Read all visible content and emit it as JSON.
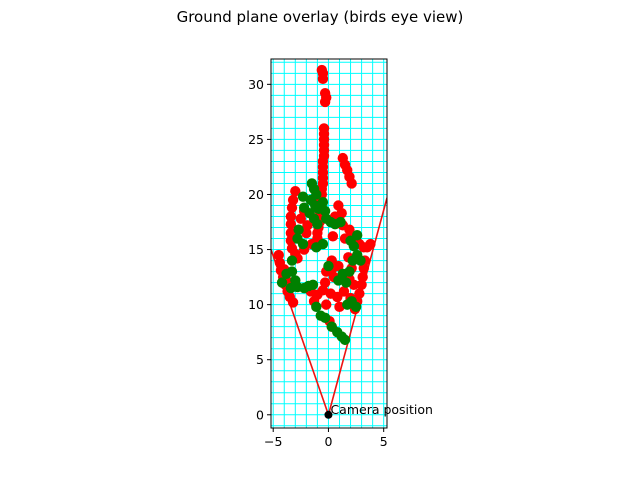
{
  "chart_data": {
    "type": "scatter",
    "title": "Ground plane overlay (birds eye view)",
    "xlabel": "",
    "ylabel": "",
    "xlim": [
      -5.2,
      5.3
    ],
    "ylim": [
      -1.2,
      32.3
    ],
    "x_ticks": [
      -5,
      0,
      5
    ],
    "y_ticks": [
      0,
      5,
      10,
      15,
      20,
      25,
      30
    ],
    "x_tick_labels": [
      "−5",
      "0",
      "5"
    ],
    "y_tick_labels": [
      "0",
      "5",
      "10",
      "15",
      "20",
      "25",
      "30"
    ],
    "grid": {
      "on": true,
      "color": "#00ffff",
      "spacing": 1
    },
    "camera": {
      "x": 0,
      "y": 0,
      "label": "Camera position"
    },
    "fov_lines": [
      {
        "color": "#ee1111",
        "points": [
          [
            0,
            0
          ],
          [
            -5.2,
            15.0
          ]
        ]
      },
      {
        "color": "#ee1111",
        "points": [
          [
            0,
            0
          ],
          [
            5.3,
            19.7
          ]
        ]
      }
    ],
    "series": [
      {
        "color": "#ff0000",
        "points": [
          [
            -0.6,
            31.3
          ],
          [
            -0.5,
            31.0
          ],
          [
            -0.5,
            30.5
          ],
          [
            -0.3,
            29.2
          ],
          [
            -0.2,
            28.8
          ],
          [
            -0.3,
            28.4
          ],
          [
            -0.4,
            26.0
          ],
          [
            -0.4,
            25.5
          ],
          [
            -0.4,
            25.0
          ],
          [
            -0.4,
            24.5
          ],
          [
            -0.4,
            24.0
          ],
          [
            -0.4,
            23.5
          ],
          [
            -0.5,
            23.0
          ],
          [
            -0.5,
            22.5
          ],
          [
            -0.5,
            22.0
          ],
          [
            -0.5,
            21.5
          ],
          [
            -0.5,
            21.0
          ],
          [
            -0.6,
            20.5
          ],
          [
            -0.6,
            20.0
          ],
          [
            -0.7,
            19.5
          ],
          [
            -0.7,
            19.0
          ],
          [
            -0.8,
            18.5
          ],
          [
            -0.8,
            18.0
          ],
          [
            -0.8,
            17.5
          ],
          [
            -0.9,
            17.0
          ],
          [
            -1.0,
            16.5
          ],
          [
            -1.0,
            16.0
          ],
          [
            -1.1,
            15.5
          ],
          [
            1.3,
            23.3
          ],
          [
            1.5,
            22.7
          ],
          [
            1.7,
            22.2
          ],
          [
            1.9,
            21.6
          ],
          [
            2.1,
            21.0
          ],
          [
            1.9,
            16.8
          ],
          [
            2.2,
            16.2
          ],
          [
            2.5,
            15.8
          ],
          [
            2.8,
            15.5
          ],
          [
            3.2,
            15.2
          ],
          [
            3.5,
            15.2
          ],
          [
            3.8,
            15.5
          ],
          [
            3.3,
            14.0
          ],
          [
            3.2,
            13.3
          ],
          [
            3.1,
            12.5
          ],
          [
            3.0,
            11.8
          ],
          [
            2.8,
            11.0
          ],
          [
            2.6,
            10.3
          ],
          [
            2.4,
            9.6
          ],
          [
            -3.0,
            20.3
          ],
          [
            -3.2,
            19.5
          ],
          [
            -3.3,
            18.8
          ],
          [
            -3.4,
            18.0
          ],
          [
            -3.4,
            17.3
          ],
          [
            -3.4,
            16.5
          ],
          [
            -3.4,
            15.8
          ],
          [
            -3.3,
            15.1
          ],
          [
            -3.0,
            14.6
          ],
          [
            -2.8,
            14.2
          ],
          [
            -2.2,
            15.0
          ],
          [
            -1.5,
            15.5
          ],
          [
            -1.9,
            17.2
          ],
          [
            -2.2,
            18.5
          ],
          [
            -2.5,
            17.8
          ],
          [
            -2.0,
            16.5
          ],
          [
            -4.5,
            14.5
          ],
          [
            -4.4,
            13.8
          ],
          [
            -4.3,
            13.1
          ],
          [
            -4.1,
            12.5
          ],
          [
            -3.9,
            11.8
          ],
          [
            -3.7,
            11.2
          ],
          [
            -3.5,
            10.7
          ],
          [
            -3.2,
            10.2
          ],
          [
            -4.0,
            13.2
          ],
          [
            -3.8,
            12.2
          ],
          [
            -1.6,
            11.2
          ],
          [
            -1.0,
            10.9
          ],
          [
            -0.5,
            11.3
          ],
          [
            0.2,
            11.0
          ],
          [
            0.8,
            10.7
          ],
          [
            1.4,
            11.2
          ],
          [
            2.0,
            10.6
          ],
          [
            -1.3,
            10.3
          ],
          [
            -0.2,
            10.0
          ],
          [
            1.0,
            9.8
          ],
          [
            -0.3,
            12.0
          ],
          [
            0.3,
            14.0
          ],
          [
            0.3,
            13.2
          ],
          [
            0.5,
            12.5
          ],
          [
            0.9,
            13.5
          ],
          [
            -0.2,
            13.0
          ],
          [
            2.1,
            13.3
          ],
          [
            1.9,
            12.3
          ],
          [
            2.3,
            11.8
          ],
          [
            1.8,
            14.3
          ],
          [
            0.9,
            19.0
          ],
          [
            1.2,
            18.3
          ],
          [
            0.6,
            18.0
          ],
          [
            1.3,
            17.2
          ],
          [
            0.4,
            16.2
          ],
          [
            1.5,
            16.0
          ],
          [
            0.1,
            8.5
          ],
          [
            0.3,
            8.0
          ]
        ]
      },
      {
        "color": "#008000",
        "points": [
          [
            -1.5,
            21.0
          ],
          [
            -1.3,
            20.5
          ],
          [
            -1.1,
            20.0
          ],
          [
            -1.6,
            19.5
          ],
          [
            -1.2,
            19.0
          ],
          [
            -0.9,
            18.7
          ],
          [
            -1.7,
            18.3
          ],
          [
            -1.3,
            17.8
          ],
          [
            -1.0,
            17.3
          ],
          [
            -0.5,
            19.3
          ],
          [
            -0.3,
            18.5
          ],
          [
            -0.2,
            17.8
          ],
          [
            0.2,
            17.5
          ],
          [
            0.6,
            17.3
          ],
          [
            1.1,
            17.5
          ],
          [
            -2.3,
            19.8
          ],
          [
            -2.2,
            18.8
          ],
          [
            -2.7,
            16.8
          ],
          [
            -2.8,
            16.0
          ],
          [
            -2.3,
            15.5
          ],
          [
            -3.3,
            14.0
          ],
          [
            -3.3,
            13.0
          ],
          [
            -3.0,
            12.2
          ],
          [
            -3.4,
            11.5
          ],
          [
            -2.8,
            11.6
          ],
          [
            -2.2,
            11.5
          ],
          [
            -1.8,
            11.7
          ],
          [
            -1.4,
            11.8
          ],
          [
            -3.8,
            12.8
          ],
          [
            -4.2,
            12.0
          ],
          [
            -1.1,
            9.8
          ],
          [
            -0.7,
            9.0
          ],
          [
            -0.3,
            8.8
          ],
          [
            0.3,
            8.0
          ],
          [
            0.8,
            7.5
          ],
          [
            1.2,
            7.1
          ],
          [
            1.5,
            6.8
          ],
          [
            1.3,
            12.8
          ],
          [
            1.6,
            12.0
          ],
          [
            1.9,
            13.0
          ],
          [
            2.2,
            14.0
          ],
          [
            2.6,
            14.5
          ],
          [
            2.9,
            14.0
          ],
          [
            2.3,
            15.3
          ],
          [
            2.0,
            15.8
          ],
          [
            2.6,
            16.3
          ],
          [
            -1.1,
            15.2
          ],
          [
            -0.5,
            15.5
          ],
          [
            0.0,
            13.5
          ],
          [
            0.9,
            12.2
          ],
          [
            1.7,
            10.0
          ],
          [
            2.1,
            10.3
          ],
          [
            2.5,
            9.8
          ]
        ]
      }
    ]
  }
}
